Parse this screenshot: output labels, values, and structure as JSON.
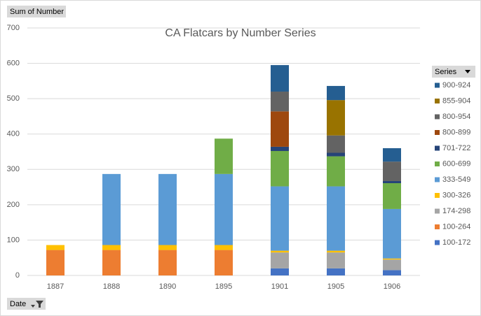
{
  "chart_data": {
    "type": "stacked-bar",
    "title": "CA Flatcars by Number Series",
    "categories": [
      "1887",
      "1888",
      "1890",
      "1895",
      "1901",
      "1905",
      "1906"
    ],
    "series": [
      {
        "name": "100-172",
        "color": "#4472c4",
        "values": [
          null,
          null,
          null,
          null,
          20,
          20,
          15
        ]
      },
      {
        "name": "100-264",
        "color": "#ed7d31",
        "values": [
          72,
          72,
          72,
          72,
          null,
          null,
          null
        ]
      },
      {
        "name": "174-298",
        "color": "#a5a5a5",
        "values": [
          null,
          null,
          null,
          null,
          45,
          45,
          30
        ]
      },
      {
        "name": "300-326",
        "color": "#ffc000",
        "values": [
          14,
          14,
          14,
          14,
          5,
          5,
          3
        ]
      },
      {
        "name": "333-549",
        "color": "#5b9bd5",
        "values": [
          null,
          201,
          201,
          201,
          182,
          182,
          140
        ]
      },
      {
        "name": "600-699",
        "color": "#70ad47",
        "values": [
          null,
          null,
          null,
          100,
          100,
          85,
          73
        ]
      },
      {
        "name": "701-722",
        "color": "#264478",
        "values": [
          null,
          null,
          null,
          null,
          12,
          10,
          6
        ]
      },
      {
        "name": "800-899",
        "color": "#9e480e",
        "values": [
          null,
          null,
          null,
          null,
          100,
          null,
          null
        ]
      },
      {
        "name": "800-954",
        "color": "#636363",
        "values": [
          null,
          null,
          null,
          null,
          56,
          49,
          55
        ]
      },
      {
        "name": "855-904",
        "color": "#997300",
        "values": [
          null,
          null,
          null,
          null,
          null,
          100,
          null
        ]
      },
      {
        "name": "900-924",
        "color": "#255e91",
        "values": [
          null,
          null,
          null,
          null,
          75,
          40,
          38
        ]
      }
    ],
    "ylim": [
      0,
      700
    ],
    "yticks": [
      0,
      100,
      200,
      300,
      400,
      500,
      600,
      700
    ],
    "grid": true,
    "legend": "right",
    "value_field": "Sum of Number",
    "legend_field": "Series",
    "axis_field": "Date"
  }
}
